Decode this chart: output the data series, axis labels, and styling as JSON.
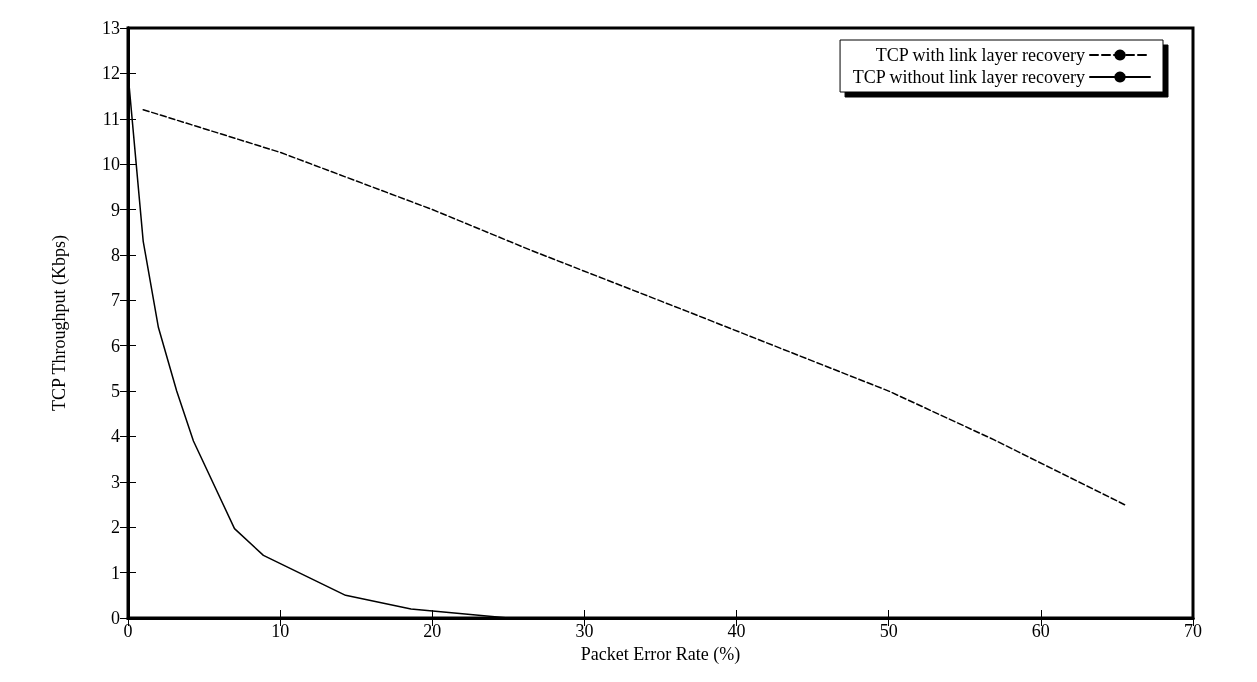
{
  "chart_data": {
    "type": "line",
    "xlabel": "Packet Error Rate (%)",
    "ylabel": "TCP Throughput (Kbps)",
    "xlim": [
      0,
      70
    ],
    "xticks": [
      0,
      10,
      20,
      30,
      40,
      50,
      60,
      70
    ],
    "ylim": [
      0,
      13
    ],
    "yticks": [
      0,
      1,
      2,
      3,
      4,
      5,
      6,
      7,
      8,
      9,
      10,
      11,
      12,
      13
    ],
    "grid": false,
    "legend": "top right",
    "marker": "none",
    "series": [
      {
        "name": "TCP with link layer recovery",
        "color": "#000000",
        "line_style": "dashed",
        "x": [
          1,
          10,
          20,
          26.5,
          36.8,
          50,
          56.9,
          65.6
        ],
        "values": [
          11.2,
          10.26,
          9.0,
          8.1,
          6.75,
          5.0,
          3.93,
          2.48
        ]
      },
      {
        "name": "TCP without link layer recovery",
        "color": "#000000",
        "line_style": "solid",
        "x": [
          0,
          1,
          2,
          3.2,
          4.3,
          7,
          8.9,
          14.3,
          18.6,
          25
        ],
        "values": [
          12,
          8.3,
          6.4,
          5.0,
          3.9,
          1.97,
          1.38,
          0.5,
          0.2,
          0
        ]
      }
    ]
  }
}
